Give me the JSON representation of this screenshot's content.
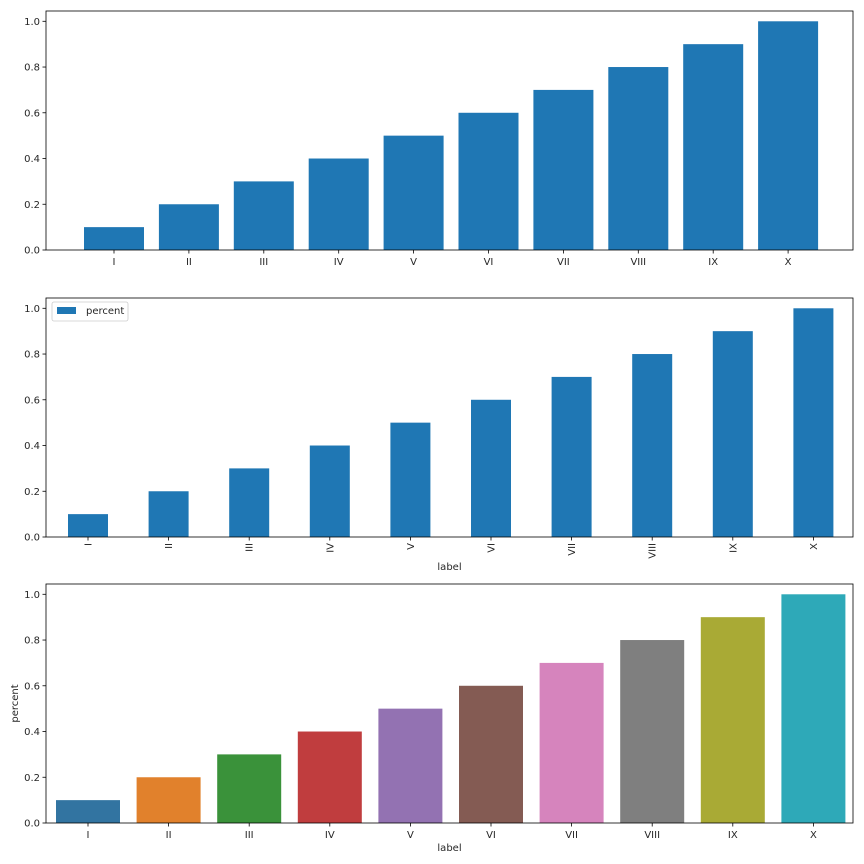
{
  "chart_data": [
    {
      "type": "bar",
      "categories": [
        "I",
        "II",
        "III",
        "IV",
        "V",
        "VI",
        "VII",
        "VIII",
        "IX",
        "X"
      ],
      "values": [
        0.1,
        0.2,
        0.3,
        0.4,
        0.5,
        0.6,
        0.7,
        0.8,
        0.9,
        1.0
      ],
      "xlabel": "",
      "ylabel": "",
      "ylim": [
        0,
        1.045
      ],
      "yticks": [
        "0.0",
        "0.2",
        "0.4",
        "0.6",
        "0.8",
        "1.0"
      ],
      "bar_color": "#1f77b4",
      "grid": false,
      "legend": null
    },
    {
      "type": "bar",
      "categories": [
        "I",
        "II",
        "III",
        "IV",
        "V",
        "VI",
        "VII",
        "VIII",
        "IX",
        "X"
      ],
      "series": [
        {
          "name": "percent",
          "values": [
            0.1,
            0.2,
            0.3,
            0.4,
            0.5,
            0.6,
            0.7,
            0.8,
            0.9,
            1.0
          ]
        }
      ],
      "xlabel": "label",
      "ylabel": "",
      "ylim": [
        0,
        1.045
      ],
      "yticks": [
        "0.0",
        "0.2",
        "0.4",
        "0.6",
        "0.8",
        "1.0"
      ],
      "xtick_rotation": "vertical",
      "bar_color": "#1f77b4",
      "grid": false,
      "legend": "top-left"
    },
    {
      "type": "bar",
      "categories": [
        "I",
        "II",
        "III",
        "IV",
        "V",
        "VI",
        "VII",
        "VIII",
        "IX",
        "X"
      ],
      "values": [
        0.1,
        0.2,
        0.3,
        0.4,
        0.5,
        0.6,
        0.7,
        0.8,
        0.9,
        1.0
      ],
      "xlabel": "label",
      "ylabel": "percent",
      "ylim": [
        0,
        1.045
      ],
      "yticks": [
        "0.0",
        "0.2",
        "0.4",
        "0.6",
        "0.8",
        "1.0"
      ],
      "colors": [
        "#3274a1",
        "#e1812c",
        "#3a923a",
        "#c03d3e",
        "#9372b2",
        "#845b53",
        "#d684bd",
        "#7f7f7f",
        "#a9aa35",
        "#2ea9b8"
      ],
      "grid": false,
      "legend": null
    }
  ]
}
